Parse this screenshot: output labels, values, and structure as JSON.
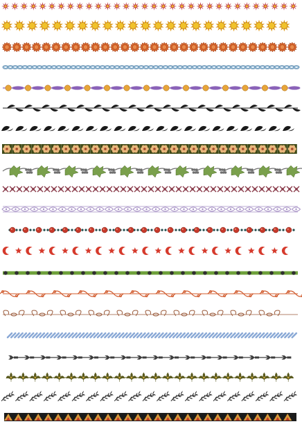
{
  "palette": {
    "sunburst_red": "#b5232b",
    "sun_yellow": "#f1c22a",
    "sun_ray": "#e09a18",
    "marigold": "#d7642a",
    "marigold_dark": "#9c3a12",
    "chain_blue": "#8eb5d2",
    "chain_blue_dark": "#5d86a6",
    "bead_purple": "#8a62b8",
    "bead_orange": "#e7a63a",
    "leaf_black": "#1a1a1a",
    "tile_olive": "#3f4a18",
    "tile_peach": "#e8b77c",
    "grape_green": "#7aa04c",
    "grape_gray": "#6f6f6f",
    "lace_maroon": "#8a3b4a",
    "lace_purple": "#a58fc4",
    "pearl_red": "#c73a2b",
    "pearl_teal": "#1f4a4a",
    "moon_red": "#d63a2c",
    "bamboo_green": "#6ea03a",
    "bamboo_dark": "#2f2f2f",
    "scroll_orange": "#d0582a",
    "scroll_brown": "#9a5a3a",
    "rope_blue": "#8aa9d6",
    "arrow_gray": "#3d3d3d",
    "fleur_olive": "#5a5a1e",
    "fleur_gold": "#c9a43a",
    "fern_black": "#222222",
    "tri_orange": "#d99a3a",
    "tri_red": "#c0392b",
    "tri_black": "#1b1b1b"
  },
  "rows": [
    {
      "name": "sunburst-border",
      "motif": "sunburst-icon"
    },
    {
      "name": "sun-border",
      "motif": "sun-icon"
    },
    {
      "name": "marigold-border",
      "motif": "flower-icon"
    },
    {
      "name": "blue-chain-border",
      "motif": "chain-icon"
    },
    {
      "name": "bead-string-border",
      "motif": "bead-icon"
    },
    {
      "name": "black-leaf-vine-border",
      "motif": "leaf-icon"
    },
    {
      "name": "black-wave-leaf-border",
      "motif": "leaf-icon"
    },
    {
      "name": "flower-tile-border",
      "motif": "flower-icon"
    },
    {
      "name": "grape-vine-border",
      "motif": "grape-icon"
    },
    {
      "name": "maroon-lace-border",
      "motif": "lace-icon"
    },
    {
      "name": "purple-lace-border",
      "motif": "lace-icon"
    },
    {
      "name": "pearl-string-border",
      "motif": "pearl-icon"
    },
    {
      "name": "moon-star-border",
      "motif": "moon-icon"
    },
    {
      "name": "bamboo-border",
      "motif": "bamboo-icon"
    },
    {
      "name": "orange-scroll-border",
      "motif": "scroll-icon"
    },
    {
      "name": "brown-scroll-border",
      "motif": "scroll-icon"
    },
    {
      "name": "rope-border",
      "motif": "rope-icon"
    },
    {
      "name": "arrow-link-border",
      "motif": "arrow-icon"
    },
    {
      "name": "fleur-de-lis-border",
      "motif": "fleur-de-lis-icon"
    },
    {
      "name": "fern-border",
      "motif": "fern-icon"
    },
    {
      "name": "triangle-tile-border",
      "motif": "triangle-icon"
    }
  ]
}
